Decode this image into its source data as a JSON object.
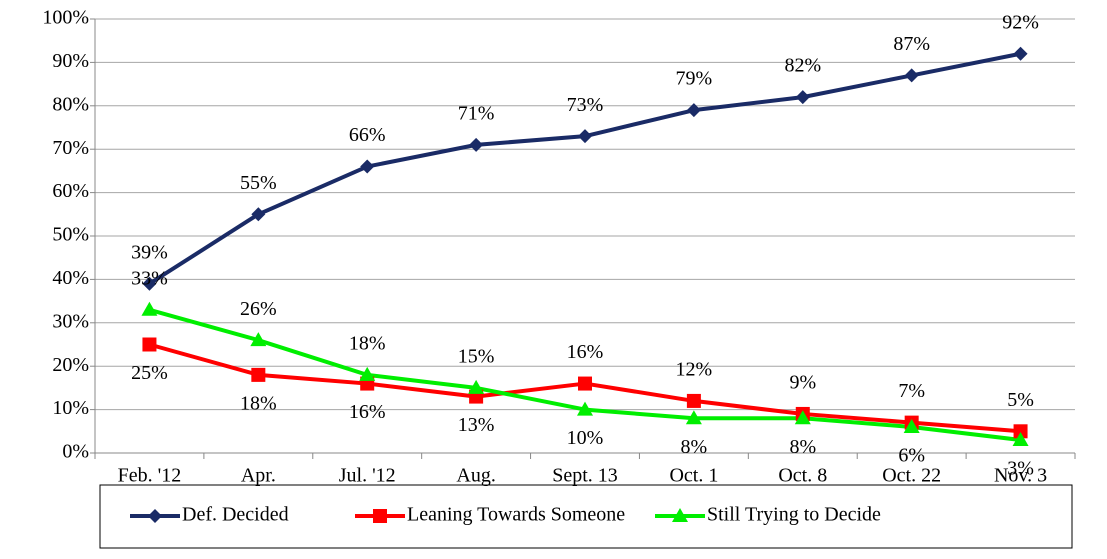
{
  "chart_data": {
    "type": "line",
    "categories": [
      "Feb. '12",
      "Apr.",
      "Jul. '12",
      "Aug.",
      "Sept. 13",
      "Oct. 1",
      "Oct. 8",
      "Oct. 22",
      "Nov. 3"
    ],
    "series": [
      {
        "name": "Def. Decided",
        "color": "#1a2b66",
        "marker": "diamond",
        "values": [
          39,
          55,
          66,
          71,
          73,
          79,
          82,
          87,
          92
        ],
        "value_labels": [
          "39%",
          "55%",
          "66%",
          "71%",
          "73%",
          "79%",
          "82%",
          "87%",
          "92%"
        ]
      },
      {
        "name": "Leaning Towards Someone",
        "color": "#ff0000",
        "marker": "square",
        "values": [
          25,
          18,
          16,
          13,
          16,
          12,
          9,
          7,
          5
        ],
        "value_labels": [
          "25%",
          "18%",
          "16%",
          "13%",
          "16%",
          "12%",
          "9%",
          "7%",
          "5%"
        ]
      },
      {
        "name": "Still Trying to Decide",
        "color": "#00ee00",
        "marker": "triangle",
        "values": [
          33,
          26,
          18,
          15,
          10,
          8,
          8,
          6,
          3
        ],
        "value_labels": [
          "33%",
          "26%",
          "18%",
          "15%",
          "10%",
          "8%",
          "8%",
          "6%",
          "3%"
        ]
      }
    ],
    "ylim": [
      0,
      100
    ],
    "yticks": [
      {
        "value": 0,
        "label": "0%"
      },
      {
        "value": 10,
        "label": "10%"
      },
      {
        "value": 20,
        "label": "20%"
      },
      {
        "value": 30,
        "label": "30%"
      },
      {
        "value": 40,
        "label": "40%"
      },
      {
        "value": 50,
        "label": "50%"
      },
      {
        "value": 60,
        "label": "60%"
      },
      {
        "value": 70,
        "label": "70%"
      },
      {
        "value": 80,
        "label": "80%"
      },
      {
        "value": 90,
        "label": "90%"
      },
      {
        "value": 100,
        "label": "100%"
      }
    ],
    "grid": true,
    "legend": "bottom"
  }
}
